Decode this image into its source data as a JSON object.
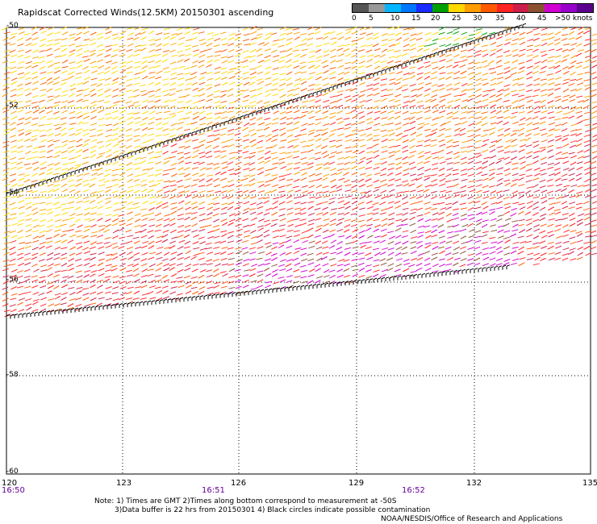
{
  "title": "Rapidscat Corrected Winds(12.5KM) 20150301 ascending",
  "legend": {
    "colors": [
      "#555555",
      "#999999",
      "#00b7ff",
      "#0077ff",
      "#1a2cff",
      "#00a000",
      "#ffd800",
      "#ff9c00",
      "#ff5a00",
      "#ff2424",
      "#cc1f4a",
      "#8a5230",
      "#d000d0",
      "#9900cc",
      "#5a008c"
    ],
    "labels": [
      "0",
      "5",
      "10",
      "15",
      "20",
      "25",
      "30",
      "35",
      "40",
      "45",
      ">50 knots"
    ]
  },
  "map": {
    "lon_ticks": [
      "120",
      "123",
      "126",
      "129",
      "132",
      "135"
    ],
    "lat_ticks": [
      "-50",
      "-52",
      "-54",
      "-56",
      "-58",
      "-60"
    ],
    "times": [
      "16:50",
      "16:51",
      "16:52"
    ]
  },
  "notes": {
    "line1": "Note: 1) Times are GMT 2)Times along bottom correspond to measurement at -50S",
    "line2": "3)Data buffer is 22 hrs from 20150301 4) Black circles indicate possible contamination",
    "credit": "NOAA/NESDIS/Office of Research and Applications"
  }
}
